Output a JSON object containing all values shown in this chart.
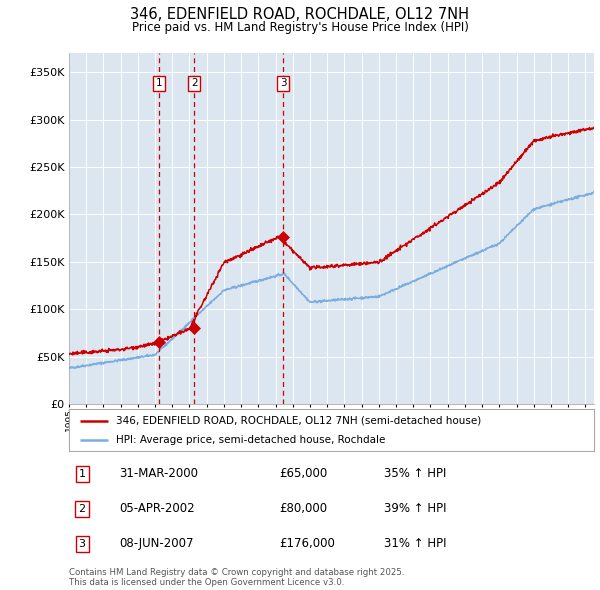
{
  "title": "346, EDENFIELD ROAD, ROCHDALE, OL12 7NH",
  "subtitle": "Price paid vs. HM Land Registry's House Price Index (HPI)",
  "background_color": "#ffffff",
  "plot_bg_color": "#dce6f1",
  "hpi_color": "#7aade0",
  "price_color": "#cc0000",
  "sale_marker_color": "#cc0000",
  "vline_color": "#cc0000",
  "ylim": [
    0,
    370000
  ],
  "yticks": [
    0,
    50000,
    100000,
    150000,
    200000,
    250000,
    300000,
    350000
  ],
  "ytick_labels": [
    "£0",
    "£50K",
    "£100K",
    "£150K",
    "£200K",
    "£250K",
    "£300K",
    "£350K"
  ],
  "sales": [
    {
      "year": 2000.25,
      "price": 65000,
      "label": "1"
    },
    {
      "year": 2002.27,
      "price": 80000,
      "label": "2"
    },
    {
      "year": 2007.44,
      "price": 176000,
      "label": "3"
    }
  ],
  "legend_entries": [
    "346, EDENFIELD ROAD, ROCHDALE, OL12 7NH (semi-detached house)",
    "HPI: Average price, semi-detached house, Rochdale"
  ],
  "table_rows": [
    {
      "num": "1",
      "date": "31-MAR-2000",
      "price": "£65,000",
      "hpi": "35% ↑ HPI"
    },
    {
      "num": "2",
      "date": "05-APR-2002",
      "price": "£80,000",
      "hpi": "39% ↑ HPI"
    },
    {
      "num": "3",
      "date": "08-JUN-2007",
      "price": "£176,000",
      "hpi": "31% ↑ HPI"
    }
  ],
  "footer": "Contains HM Land Registry data © Crown copyright and database right 2025.\nThis data is licensed under the Open Government Licence v3.0.",
  "xstart": 1995,
  "xend": 2025.5
}
